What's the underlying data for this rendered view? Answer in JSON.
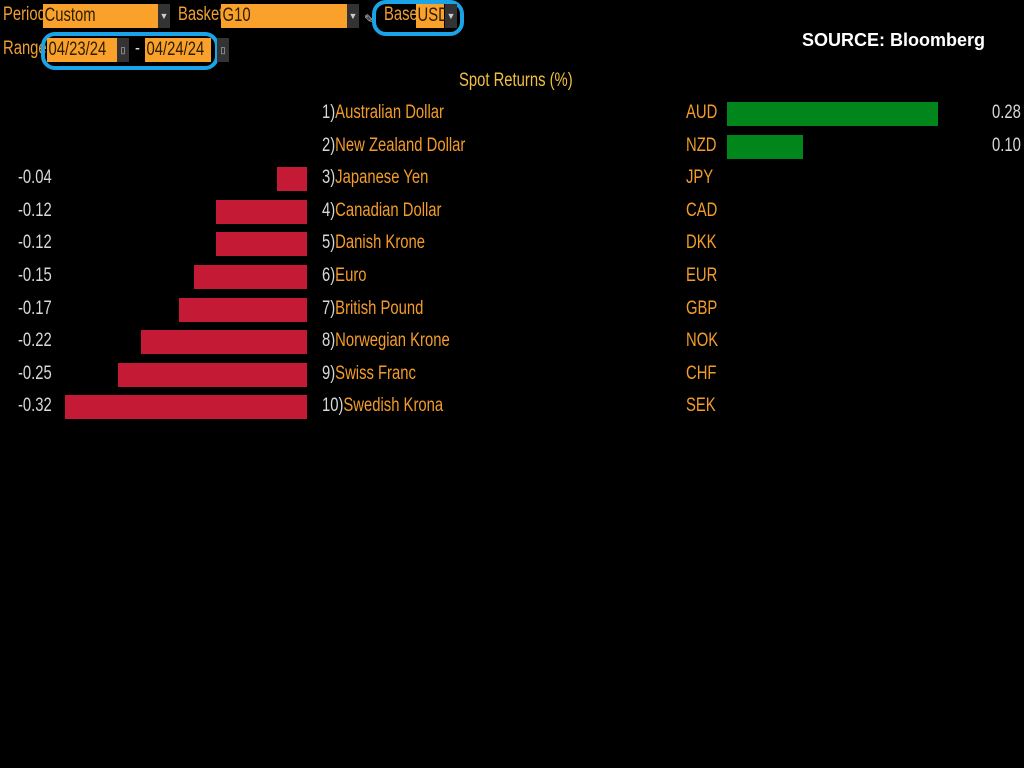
{
  "toolbar": {
    "period_label": "Period",
    "period_value": "Custom",
    "basket_label": "Basket",
    "basket_value": "G10",
    "base_label": "Base",
    "base_value": "USD",
    "range_label": "Range",
    "range_start": "04/23/24",
    "range_separator": "-",
    "range_end": "04/24/24"
  },
  "source": "SOURCE: Bloomberg",
  "colors": {
    "positive": "#00861a",
    "negative": "#c41a35",
    "field": "#f9a12b",
    "highlight": "#1aa3e6"
  },
  "chart_data": {
    "type": "bar",
    "title": "Spot Returns (%)",
    "rows": [
      {
        "rank": "1)",
        "name": "Australian Dollar",
        "code": "AUD",
        "value": 0.28,
        "label": "0.28"
      },
      {
        "rank": "2)",
        "name": "New Zealand Dollar",
        "code": "NZD",
        "value": 0.1,
        "label": "0.10"
      },
      {
        "rank": "3)",
        "name": "Japanese Yen",
        "code": "JPY",
        "value": -0.04,
        "label": "-0.04"
      },
      {
        "rank": "4)",
        "name": "Canadian Dollar",
        "code": "CAD",
        "value": -0.12,
        "label": "-0.12"
      },
      {
        "rank": "5)",
        "name": "Danish Krone",
        "code": "DKK",
        "value": -0.12,
        "label": "-0.12"
      },
      {
        "rank": "6)",
        "name": "Euro",
        "code": "EUR",
        "value": -0.15,
        "label": "-0.15"
      },
      {
        "rank": "7)",
        "name": "British Pound",
        "code": "GBP",
        "value": -0.17,
        "label": "-0.17"
      },
      {
        "rank": "8)",
        "name": "Norwegian Krone",
        "code": "NOK",
        "value": -0.22,
        "label": "-0.22"
      },
      {
        "rank": "9)",
        "name": "Swiss Franc",
        "code": "CHF",
        "value": -0.25,
        "label": "-0.25"
      },
      {
        "rank": "10)",
        "name": "Swedish Krona",
        "code": "SEK",
        "value": -0.32,
        "label": "-0.32"
      }
    ]
  }
}
